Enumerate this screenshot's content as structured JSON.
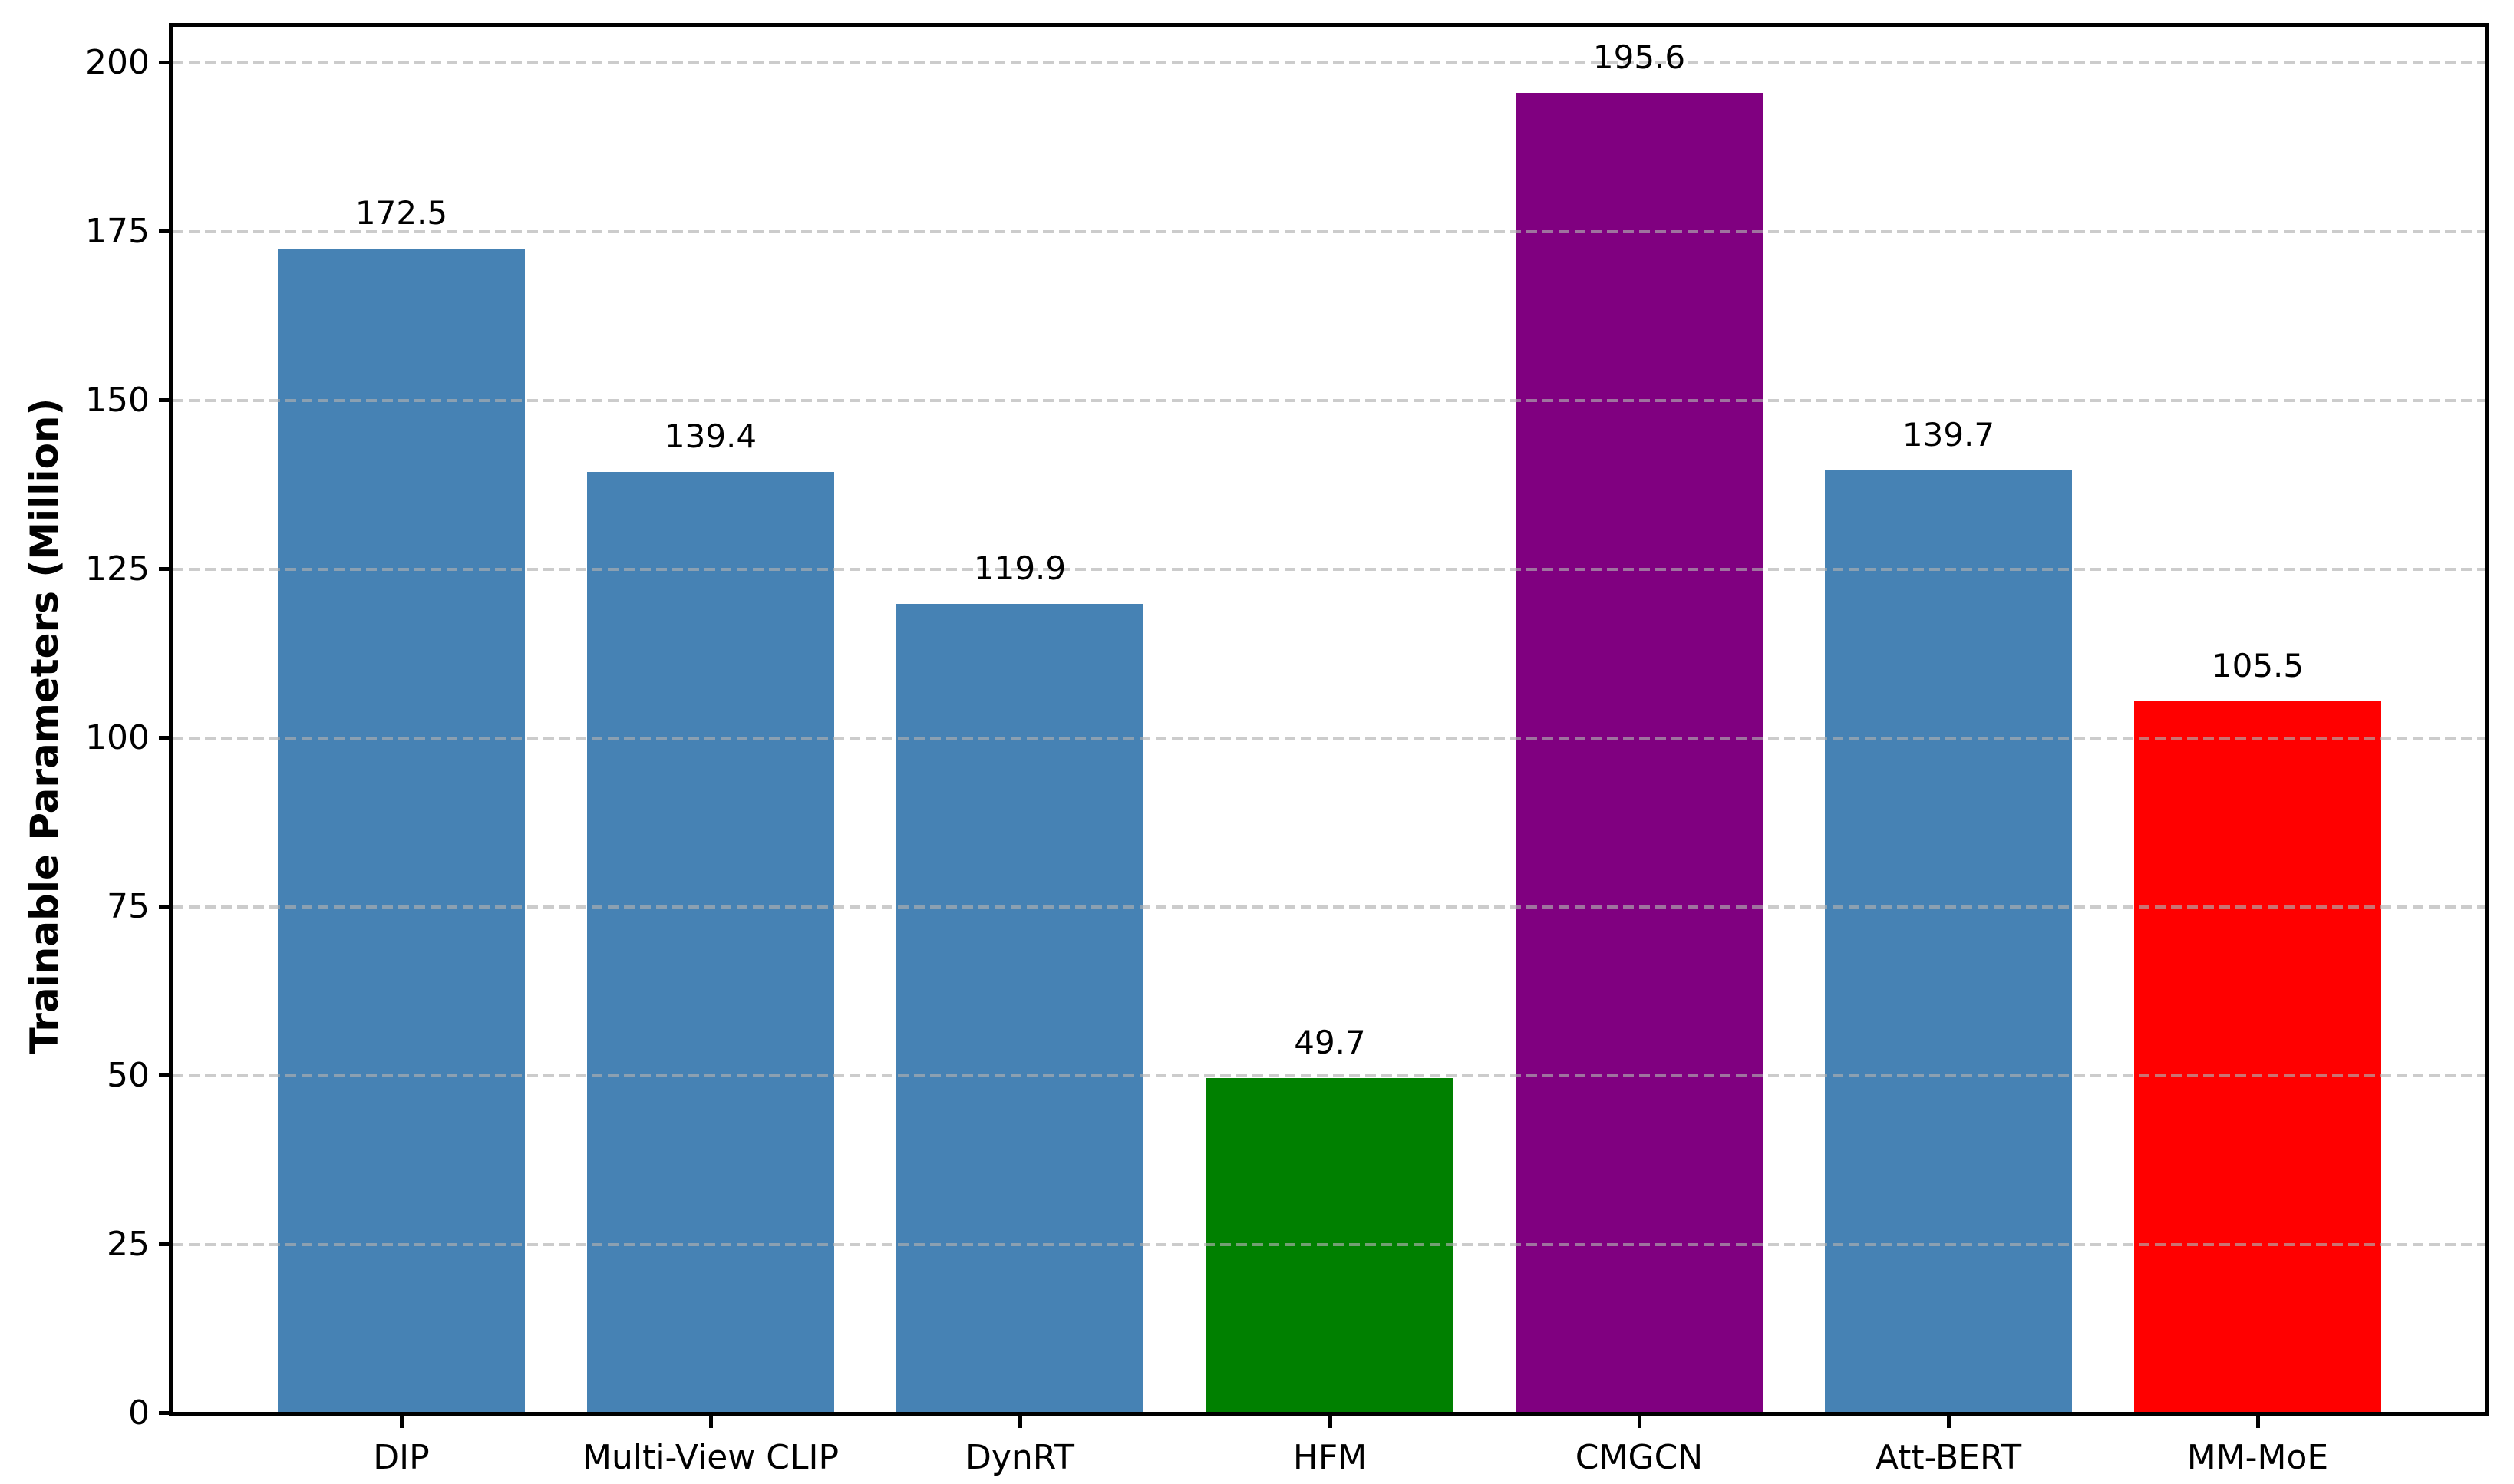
{
  "chart_data": {
    "type": "bar",
    "title": "",
    "xlabel": "",
    "ylabel": "Trainable Parameters (Million)",
    "categories": [
      "DIP",
      "Multi-View CLIP",
      "DynRT",
      "HFM",
      "CMGCN",
      "Att-BERT",
      "MM-MoE"
    ],
    "values": [
      172.5,
      139.4,
      119.9,
      49.7,
      195.6,
      139.7,
      105.5
    ],
    "value_labels": [
      "172.5",
      "139.4",
      "119.9",
      "49.7",
      "195.6",
      "139.7",
      "105.5"
    ],
    "bar_colors": [
      "#4682b4",
      "#4682b4",
      "#4682b4",
      "#008000",
      "#800080",
      "#4682b4",
      "#ff0000"
    ],
    "ylim": [
      0,
      205.6
    ],
    "yticks": [
      0,
      25,
      50,
      75,
      100,
      125,
      150,
      175,
      200
    ],
    "ytick_labels": [
      "0",
      "25",
      "50",
      "75",
      "100",
      "125",
      "150",
      "175",
      "200"
    ],
    "grid": "dashed horizontal gridlines at y ticks, drawn above bars",
    "grid_color": "#b0b0b0",
    "legend_position": "none",
    "bar_width_fraction": 0.8,
    "axis_color": "#000000",
    "background_color": "#ffffff"
  }
}
